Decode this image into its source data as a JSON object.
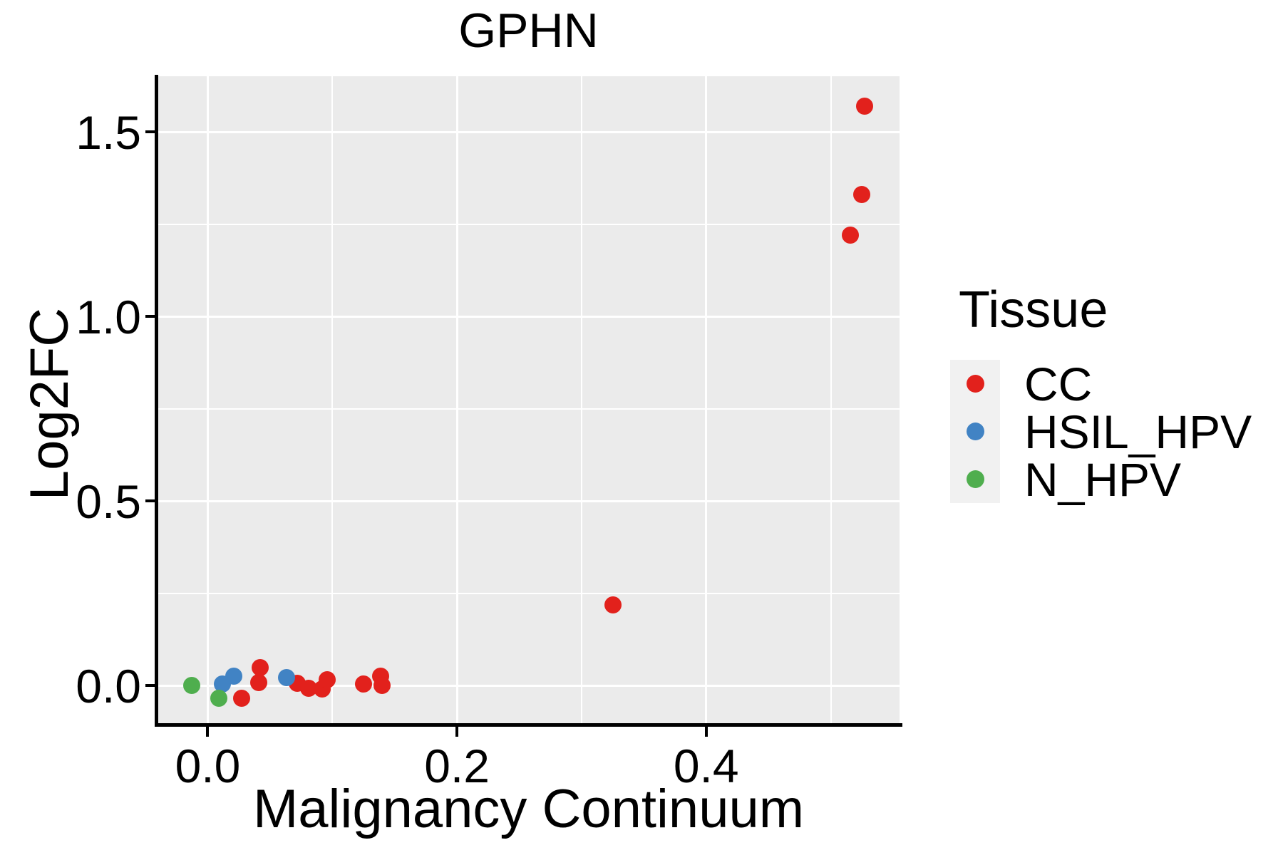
{
  "title": "GPHN",
  "chart_data": {
    "type": "scatter",
    "title": "GPHN",
    "xlabel": "Malignancy Continuum",
    "ylabel": "Log2FC",
    "legend_title": "Tissue",
    "legend_position": "right",
    "grid": true,
    "panel_background": "#EBEBEB",
    "legend_key_background": "#F1F1F1",
    "x_range": [
      -0.0403,
      0.5552
    ],
    "y_range": [
      -0.1081,
      1.6506
    ],
    "x_ticks": [
      0.0,
      0.2,
      0.4
    ],
    "x_tick_labels": [
      "0.0",
      "0.2",
      "0.4"
    ],
    "y_ticks": [
      0.0,
      0.5,
      1.0,
      1.5
    ],
    "y_tick_labels": [
      "0.0",
      "0.5",
      "1.0",
      "1.5"
    ],
    "x_minor_gridlines": [
      0.1,
      0.3,
      0.5
    ],
    "y_minor_gridlines": [
      0.25,
      0.75,
      1.25
    ],
    "series": [
      {
        "name": "CC",
        "color": "#E2211C",
        "points": [
          [
            0.027,
            -0.035
          ],
          [
            0.041,
            0.007
          ],
          [
            0.042,
            0.049
          ],
          [
            0.072,
            0.006
          ],
          [
            0.081,
            -0.008
          ],
          [
            0.092,
            -0.01
          ],
          [
            0.096,
            0.015
          ],
          [
            0.125,
            0.004
          ],
          [
            0.139,
            0.026
          ],
          [
            0.14,
            0.0
          ],
          [
            0.325,
            0.218
          ],
          [
            0.516,
            1.22
          ],
          [
            0.525,
            1.33
          ],
          [
            0.527,
            1.57
          ]
        ]
      },
      {
        "name": "HSIL_HPV",
        "color": "#4183C4",
        "points": [
          [
            0.012,
            0.003
          ],
          [
            0.021,
            0.025
          ],
          [
            0.063,
            0.021
          ]
        ]
      },
      {
        "name": "N_HPV",
        "color": "#4FAE4E",
        "points": [
          [
            -0.013,
            0.0
          ],
          [
            0.009,
            -0.035
          ]
        ]
      }
    ]
  }
}
